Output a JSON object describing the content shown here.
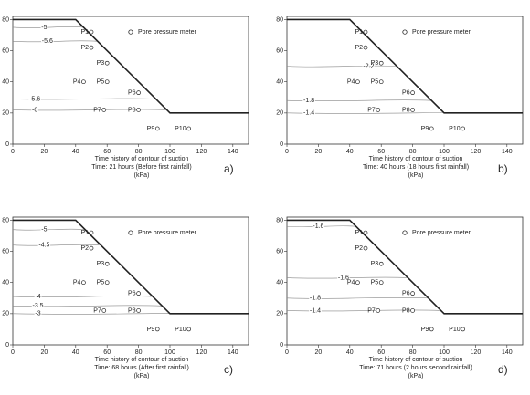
{
  "axes": {
    "xlim": [
      0,
      150
    ],
    "ylim": [
      0,
      82
    ],
    "xticks": [
      0,
      20,
      40,
      60,
      80,
      100,
      120,
      140
    ],
    "yticks": [
      0,
      20,
      40,
      60,
      80
    ]
  },
  "profile": {
    "x": [
      0,
      40,
      100,
      150
    ],
    "y": [
      80,
      80,
      20,
      20
    ]
  },
  "legend_label": "Pore pressure meter",
  "legend_pos": {
    "x": 75,
    "y": 72
  },
  "sensors": [
    {
      "label": "P1",
      "x": 50,
      "y": 72
    },
    {
      "label": "P2",
      "x": 50,
      "y": 62
    },
    {
      "label": "P3",
      "x": 60,
      "y": 52
    },
    {
      "label": "P4",
      "x": 45,
      "y": 40
    },
    {
      "label": "P5",
      "x": 60,
      "y": 40
    },
    {
      "label": "P6",
      "x": 80,
      "y": 33
    },
    {
      "label": "P7",
      "x": 58,
      "y": 22
    },
    {
      "label": "P8",
      "x": 80,
      "y": 22
    },
    {
      "label": "P9",
      "x": 92,
      "y": 10
    },
    {
      "label": "P10",
      "x": 112,
      "y": 10
    }
  ],
  "panels": [
    {
      "tag": "a)",
      "caption": [
        "Time history of contour of suction",
        "Time: 21 hours (Before first rainfall)",
        "(kPa)"
      ],
      "contour_labels": [
        {
          "label": "-5",
          "x": 20,
          "y": 75
        },
        {
          "label": "-5.6",
          "x": 22,
          "y": 66
        },
        {
          "label": "-5.6",
          "x": 14,
          "y": 29
        },
        {
          "label": "-6",
          "x": 14,
          "y": 22
        }
      ]
    },
    {
      "tag": "b)",
      "caption": [
        "Time history of contour of suction",
        "Time: 40 hours (18 hours first rainfall)",
        "(kPa)"
      ],
      "contour_labels": [
        {
          "label": "-2.2",
          "x": 52,
          "y": 50
        },
        {
          "label": "-1.8",
          "x": 14,
          "y": 28
        },
        {
          "label": "-1.4",
          "x": 14,
          "y": 20
        }
      ]
    },
    {
      "tag": "c)",
      "caption": [
        "Time history of contour of suction",
        "Time: 68 hours (After first rainfall)",
        "(kPa)"
      ],
      "contour_labels": [
        {
          "label": "-5",
          "x": 20,
          "y": 74
        },
        {
          "label": "-4.5",
          "x": 20,
          "y": 64
        },
        {
          "label": "-4",
          "x": 16,
          "y": 31
        },
        {
          "label": "-3.5",
          "x": 16,
          "y": 25
        },
        {
          "label": "-3",
          "x": 16,
          "y": 20
        }
      ]
    },
    {
      "tag": "d)",
      "caption": [
        "Time history of contour of suction",
        "Time: 71 hours (2 hours second rainfall)",
        "(kPa)"
      ],
      "contour_labels": [
        {
          "label": "-1.6",
          "x": 20,
          "y": 76
        },
        {
          "label": "-1.6",
          "x": 36,
          "y": 43
        },
        {
          "label": "-1.8",
          "x": 18,
          "y": 30
        },
        {
          "label": "-1.4",
          "x": 18,
          "y": 22
        }
      ]
    }
  ]
}
